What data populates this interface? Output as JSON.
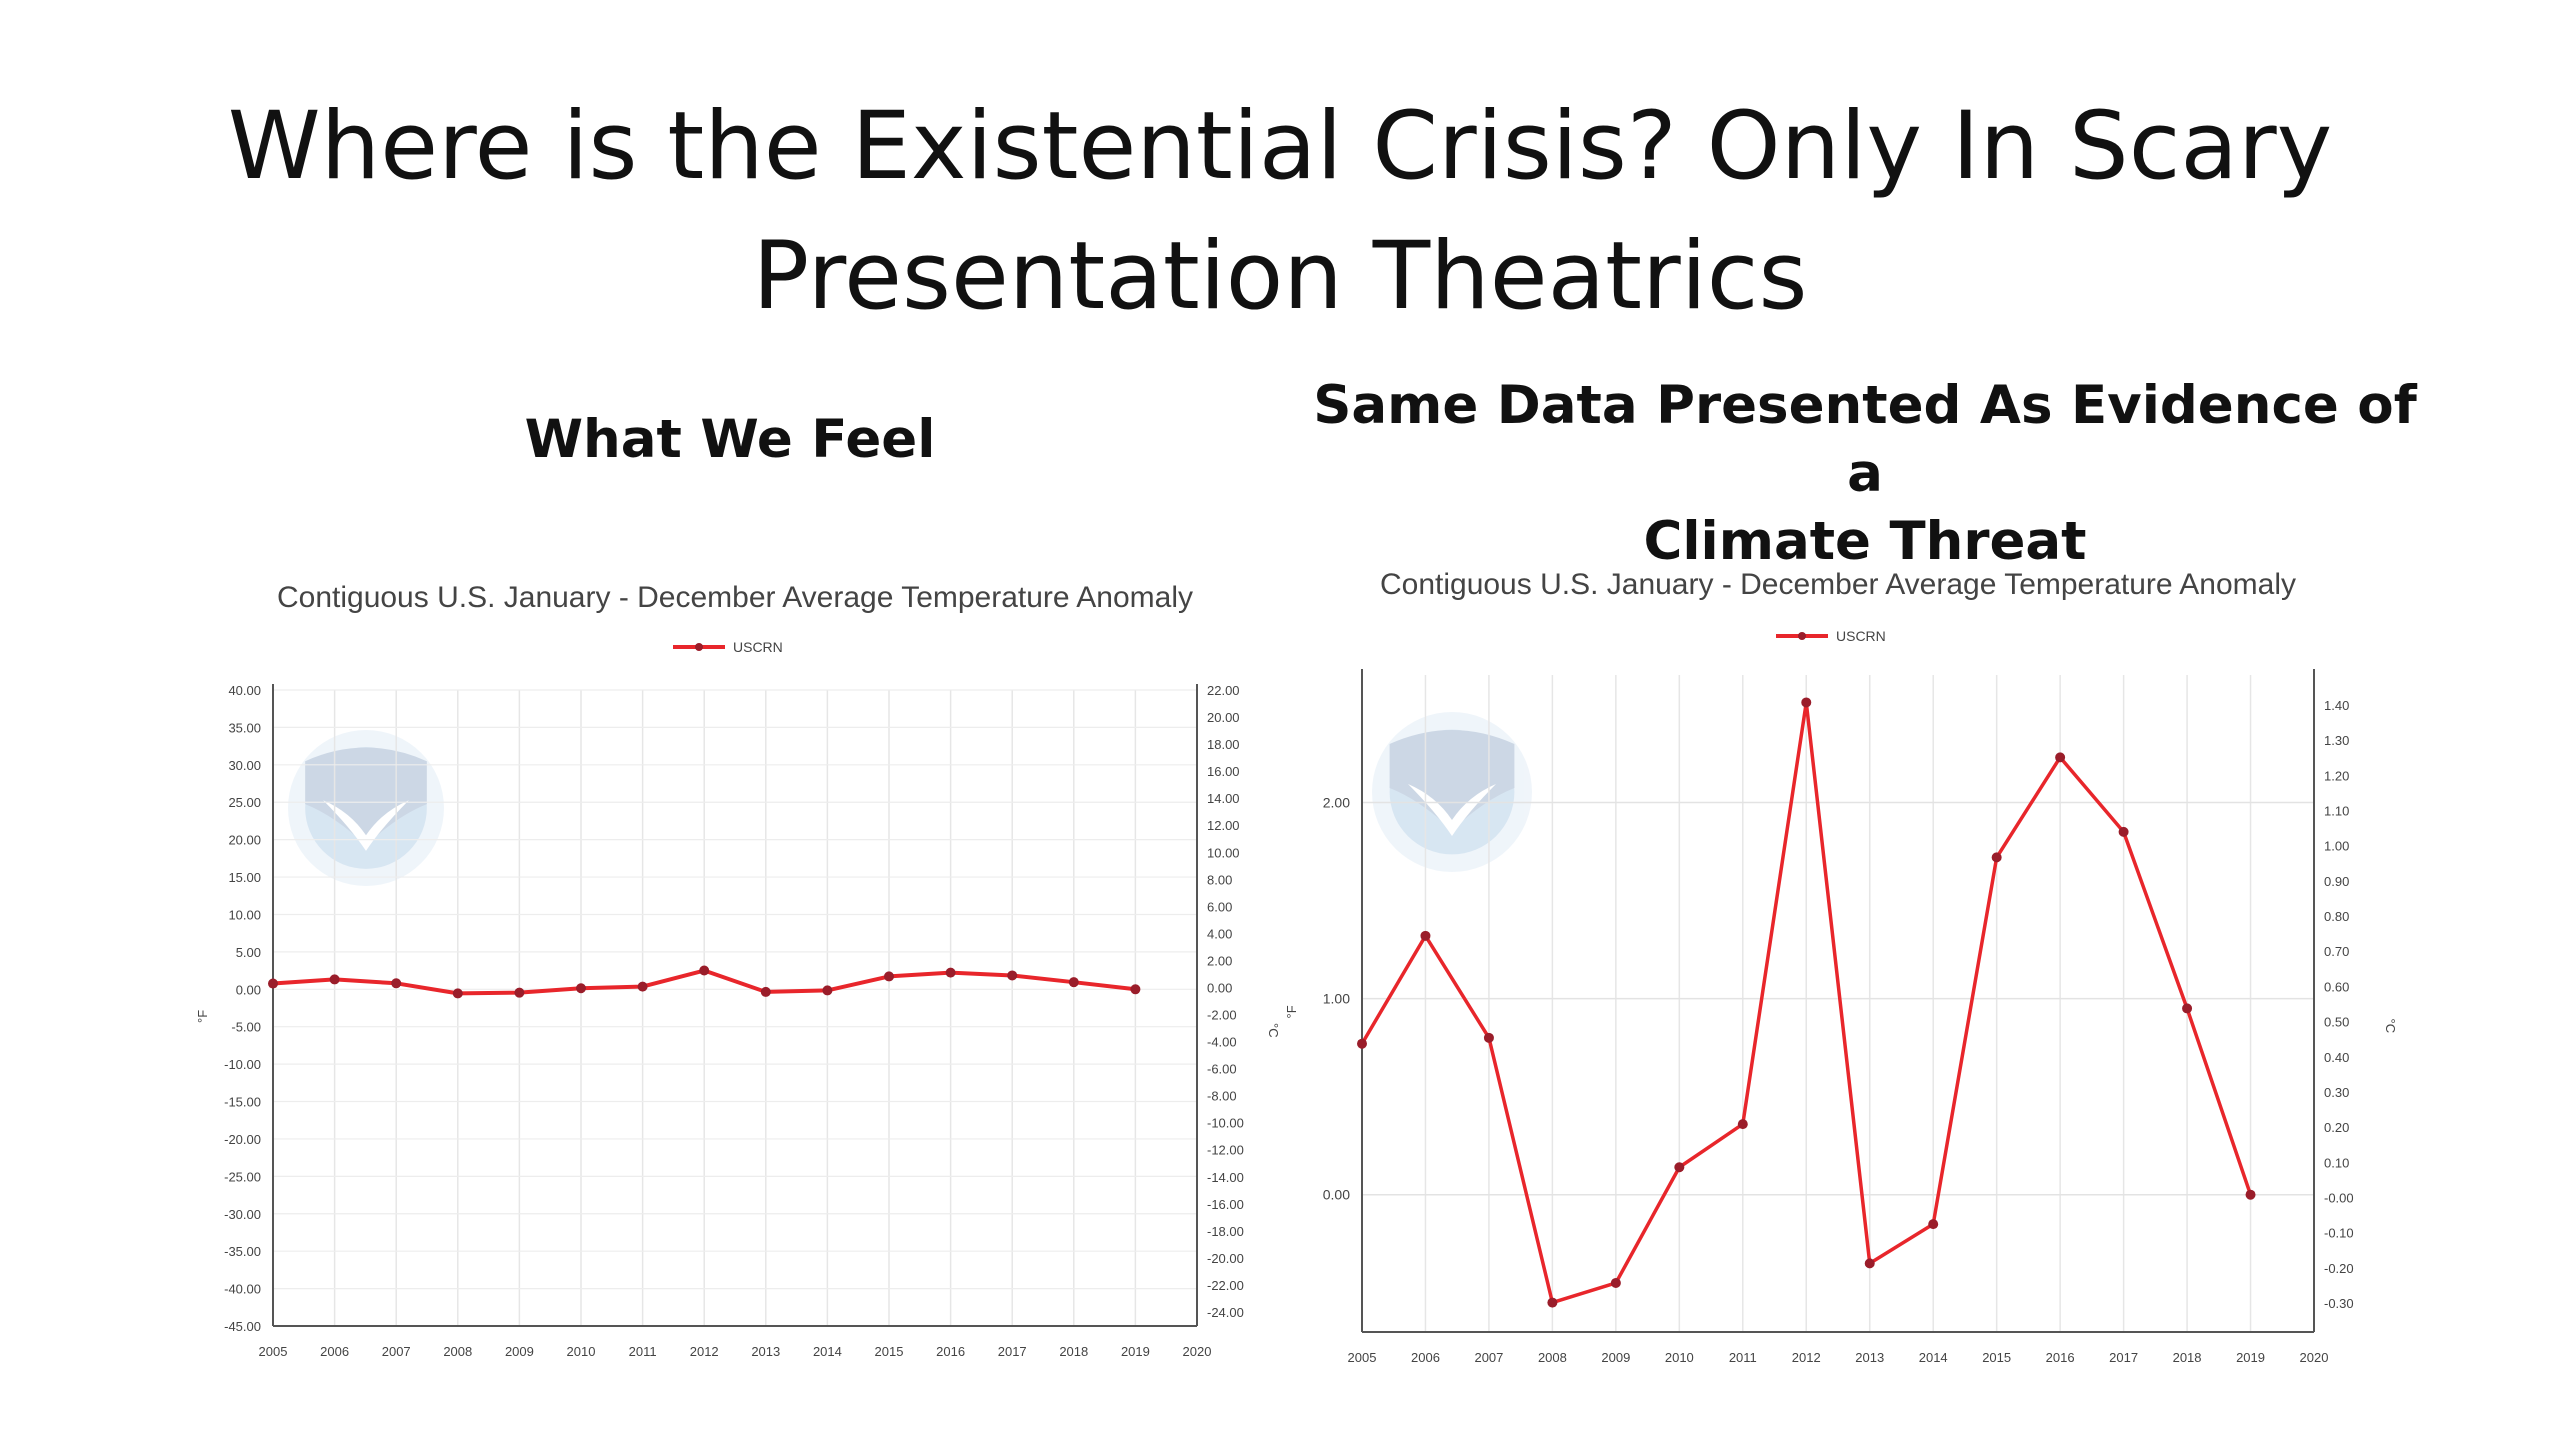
{
  "slide": {
    "title_lines": [
      "Where is the Existential Crisis? Only In Scary",
      "Presentation Theatrics"
    ],
    "left_heading_lines": [
      "What We Feel"
    ],
    "right_heading_lines": [
      "Same Data  Presented As Evidence of a",
      "Climate Threat"
    ]
  },
  "chart_data": [
    {
      "type": "line",
      "title": "Contiguous U.S. January - December Average Temperature Anomaly",
      "legend": "USCRN",
      "legend_position": "top-center",
      "grid": true,
      "color": "#e8262b",
      "x": [
        2005,
        2006,
        2007,
        2008,
        2009,
        2010,
        2011,
        2012,
        2013,
        2014,
        2015,
        2016,
        2017,
        2018,
        2019
      ],
      "xlim": [
        2005,
        2020
      ],
      "xticks": [
        "2005",
        "2006",
        "2007",
        "2008",
        "2009",
        "2010",
        "2011",
        "2012",
        "2013",
        "2014",
        "2015",
        "2016",
        "2017",
        "2018",
        "2019",
        "2020"
      ],
      "ylabel": "°F",
      "y2label": "°C",
      "ylim": [
        -45,
        40
      ],
      "yticks": [
        "40.00",
        "35.00",
        "30.00",
        "25.00",
        "20.00",
        "15.00",
        "10.00",
        "5.00",
        "0.00",
        "-5.00",
        "-10.00",
        "-15.00",
        "-20.00",
        "-25.00",
        "-30.00",
        "-35.00",
        "-40.00",
        "-45.00"
      ],
      "y2ticks": [
        "22.00",
        "20.00",
        "18.00",
        "16.00",
        "14.00",
        "12.00",
        "10.00",
        "8.00",
        "6.00",
        "4.00",
        "2.00",
        "0.00",
        "-2.00",
        "-4.00",
        "-6.00",
        "-8.00",
        "-10.00",
        "-12.00",
        "-14.00",
        "-16.00",
        "-18.00",
        "-20.00",
        "-22.00",
        "-24.00"
      ],
      "series": [
        {
          "name": "USCRN",
          "values": [
            0.77,
            1.32,
            0.8,
            -0.55,
            -0.45,
            0.14,
            0.36,
            2.51,
            -0.35,
            -0.15,
            1.72,
            2.23,
            1.85,
            0.95,
            0.0
          ]
        }
      ]
    },
    {
      "type": "line",
      "title": "Contiguous U.S. January - December Average Temperature Anomaly",
      "legend": "USCRN",
      "legend_position": "top-center",
      "grid": true,
      "color": "#e8262b",
      "x": [
        2005,
        2006,
        2007,
        2008,
        2009,
        2010,
        2011,
        2012,
        2013,
        2014,
        2015,
        2016,
        2017,
        2018,
        2019
      ],
      "xlim": [
        2005,
        2020
      ],
      "xticks": [
        "2005",
        "2006",
        "2007",
        "2008",
        "2009",
        "2010",
        "2011",
        "2012",
        "2013",
        "2014",
        "2015",
        "2016",
        "2017",
        "2018",
        "2019",
        "2020"
      ],
      "ylabel": "°F",
      "y2label": "°C",
      "ylim": [
        -0.7,
        2.65
      ],
      "yticks": [
        "2.00",
        "1.00",
        "0.00"
      ],
      "y2ticks": [
        "1.40",
        "1.30",
        "1.20",
        "1.10",
        "1.00",
        "0.90",
        "0.80",
        "0.70",
        "0.60",
        "0.50",
        "0.40",
        "0.30",
        "0.20",
        "0.10",
        "-0.00",
        "-0.10",
        "-0.20",
        "-0.30"
      ],
      "series": [
        {
          "name": "USCRN",
          "values": [
            0.77,
            1.32,
            0.8,
            -0.55,
            -0.45,
            0.14,
            0.36,
            2.51,
            -0.35,
            -0.15,
            1.72,
            2.23,
            1.85,
            0.95,
            0.0
          ]
        }
      ]
    }
  ]
}
